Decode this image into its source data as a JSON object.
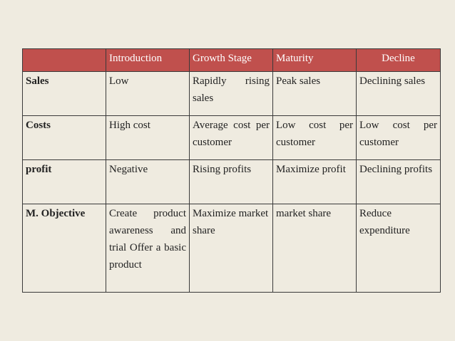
{
  "table": {
    "headers": [
      "",
      "Introduction",
      "Growth Stage",
      "Maturity",
      "Decline"
    ],
    "rows": [
      {
        "label": "Sales",
        "cells": [
          "Low",
          "Rapidly rising sales",
          "Peak sales",
          "Declining sales"
        ]
      },
      {
        "label": "Costs",
        "cells": [
          "High cost",
          "Average cost per customer",
          "Low cost per customer",
          "Low cost per customer"
        ]
      },
      {
        "label": "profit",
        "cells": [
          "Negative",
          "Rising profits",
          "Maximize profit",
          "Declining profits"
        ]
      },
      {
        "label": "M. Objective",
        "cells": [
          "Create product awareness and trial Offer a basic product",
          "Maximize market share",
          "market share",
          "Reduce expenditure"
        ]
      }
    ]
  },
  "colors": {
    "background": "#efebe0",
    "header_fill": "#c0504d",
    "header_text": "#ffffff",
    "border": "#3a3a3a"
  }
}
